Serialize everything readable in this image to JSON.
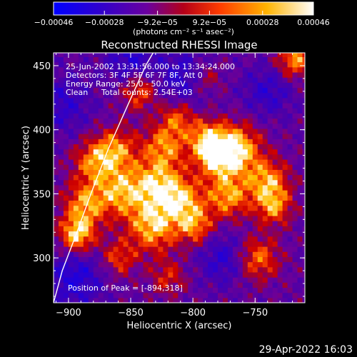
{
  "chart_data": {
    "type": "heatmap",
    "title": "Reconstructed RHESSI Image",
    "xlabel": "Heliocentric X (arcsec)",
    "ylabel": "Heliocentric Y (arcsec)",
    "xlim": [
      -912,
      -710
    ],
    "ylim": [
      265,
      460
    ],
    "xticks": [
      -900,
      -850,
      -800,
      -750
    ],
    "xtick_labels": [
      "−900",
      "−850",
      "−800",
      "−750"
    ],
    "yticks": [
      300,
      350,
      400,
      450
    ],
    "ytick_labels": [
      "300",
      "350",
      "400",
      "450"
    ],
    "colorbar": {
      "range": [
        -0.00046,
        0.00046
      ],
      "ticks": [
        -0.00046,
        -0.00028,
        -9.2e-05,
        9.2e-05,
        0.00028,
        0.00046
      ],
      "tick_labels": [
        "−0.00046",
        "−0.00028",
        "−9.2e−05",
        "9.2e−05",
        "0.00028",
        "0.00046"
      ],
      "units_label": "(photons cm⁻² s⁻¹ asec⁻²)",
      "colors": [
        "#0000ff",
        "#4b00a8",
        "#7a0096",
        "#c80000",
        "#ff5a00",
        "#ffc800",
        "#ffffff"
      ]
    },
    "annotations": {
      "time_range": "25-Jun-2002 13:31:56.000 to 13:34:24.000",
      "detectors": "Detectors: 3F 4F 5F 6F 7F 8F, Att 0",
      "energy": "Energy Range: 25.0 - 50.0 keV",
      "algorithm": "Clean",
      "counts": "Total counts: 2.54E+03",
      "peak": "Position of Peak = [-894,318]"
    },
    "peak": {
      "x": -894,
      "y": 318
    },
    "limb_curve": [
      [
        -912,
        265
      ],
      [
        -905,
        290
      ],
      [
        -894,
        318
      ],
      [
        -882,
        350
      ],
      [
        -868,
        385
      ],
      [
        -852,
        420
      ],
      [
        -838,
        450
      ],
      [
        -832,
        460
      ]
    ],
    "hot_spots": [
      {
        "x": -893,
        "y": 318,
        "r": 10,
        "v": 1.0
      },
      {
        "x": -887,
        "y": 342,
        "r": 12,
        "v": 0.75
      },
      {
        "x": -880,
        "y": 375,
        "r": 12,
        "v": 0.65
      },
      {
        "x": -858,
        "y": 352,
        "r": 14,
        "v": 0.8
      },
      {
        "x": -862,
        "y": 385,
        "r": 12,
        "v": 0.7
      },
      {
        "x": -843,
        "y": 430,
        "r": 10,
        "v": 0.65
      },
      {
        "x": -832,
        "y": 325,
        "r": 14,
        "v": 0.9
      },
      {
        "x": -828,
        "y": 358,
        "r": 14,
        "v": 0.85
      },
      {
        "x": -823,
        "y": 388,
        "r": 12,
        "v": 0.7
      },
      {
        "x": -812,
        "y": 410,
        "r": 10,
        "v": 0.6
      },
      {
        "x": -808,
        "y": 345,
        "r": 12,
        "v": 0.75
      },
      {
        "x": -798,
        "y": 325,
        "r": 10,
        "v": 0.7
      },
      {
        "x": -790,
        "y": 395,
        "r": 10,
        "v": 0.6
      },
      {
        "x": -765,
        "y": 385,
        "r": 14,
        "v": 0.95
      },
      {
        "x": -782,
        "y": 380,
        "r": 12,
        "v": 0.9
      },
      {
        "x": -772,
        "y": 348,
        "r": 12,
        "v": 0.8
      },
      {
        "x": -740,
        "y": 360,
        "r": 12,
        "v": 0.8
      },
      {
        "x": -735,
        "y": 340,
        "r": 10,
        "v": 0.7
      },
      {
        "x": -748,
        "y": 300,
        "r": 12,
        "v": 0.7
      },
      {
        "x": -718,
        "y": 455,
        "r": 10,
        "v": 0.8
      },
      {
        "x": -790,
        "y": 440,
        "r": 10,
        "v": 0.5
      },
      {
        "x": -860,
        "y": 300,
        "r": 10,
        "v": 0.55
      },
      {
        "x": -820,
        "y": 285,
        "r": 10,
        "v": 0.45
      }
    ],
    "cold_spots": [
      {
        "x": -895,
        "y": 285,
        "r": 16,
        "v": -0.55
      },
      {
        "x": -805,
        "y": 440,
        "r": 16,
        "v": -0.5
      },
      {
        "x": -850,
        "y": 455,
        "r": 14,
        "v": -0.45
      },
      {
        "x": -740,
        "y": 430,
        "r": 14,
        "v": -0.4
      },
      {
        "x": -775,
        "y": 300,
        "r": 14,
        "v": -0.45
      },
      {
        "x": -905,
        "y": 420,
        "r": 16,
        "v": -0.4
      }
    ]
  },
  "footer": {
    "date": "29-Apr-2022 16:03"
  }
}
